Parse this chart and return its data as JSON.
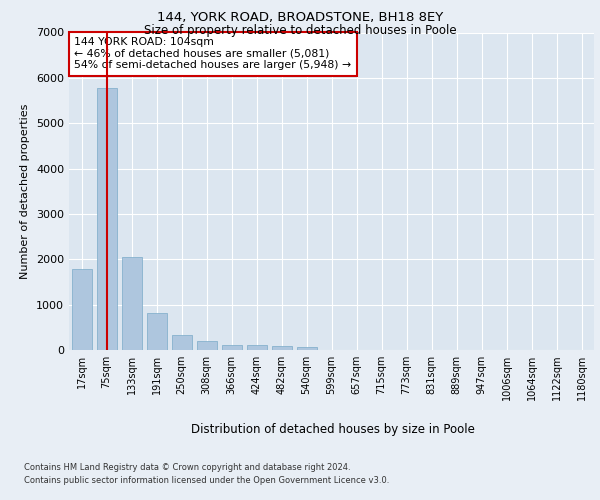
{
  "title1": "144, YORK ROAD, BROADSTONE, BH18 8EY",
  "title2": "Size of property relative to detached houses in Poole",
  "xlabel": "Distribution of detached houses by size in Poole",
  "ylabel": "Number of detached properties",
  "categories": [
    "17sqm",
    "75sqm",
    "133sqm",
    "191sqm",
    "250sqm",
    "308sqm",
    "366sqm",
    "424sqm",
    "482sqm",
    "540sqm",
    "599sqm",
    "657sqm",
    "715sqm",
    "773sqm",
    "831sqm",
    "889sqm",
    "947sqm",
    "1006sqm",
    "1064sqm",
    "1122sqm",
    "1180sqm"
  ],
  "values": [
    1780,
    5780,
    2060,
    820,
    340,
    190,
    120,
    100,
    95,
    70,
    0,
    0,
    0,
    0,
    0,
    0,
    0,
    0,
    0,
    0,
    0
  ],
  "bar_color": "#aec6de",
  "bar_edge_color": "#7aaac8",
  "vline_x": 1,
  "vline_color": "#cc0000",
  "annotation_text": "144 YORK ROAD: 104sqm\n← 46% of detached houses are smaller (5,081)\n54% of semi-detached houses are larger (5,948) →",
  "annotation_box_color": "#ffffff",
  "annotation_box_edge": "#cc0000",
  "ylim": [
    0,
    7000
  ],
  "yticks": [
    0,
    1000,
    2000,
    3000,
    4000,
    5000,
    6000,
    7000
  ],
  "bg_color": "#e8eef5",
  "plot_bg_color": "#dce6f0",
  "grid_color": "#ffffff",
  "footer1": "Contains HM Land Registry data © Crown copyright and database right 2024.",
  "footer2": "Contains public sector information licensed under the Open Government Licence v3.0."
}
